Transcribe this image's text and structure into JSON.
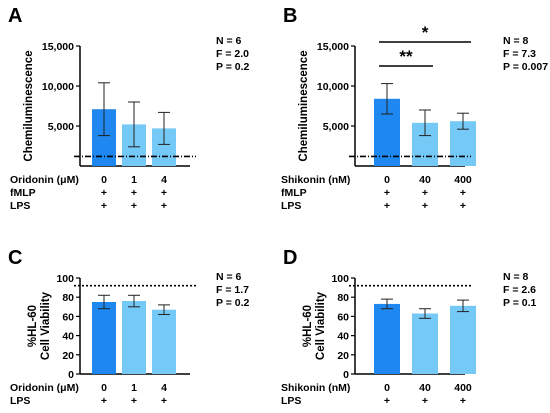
{
  "colors": {
    "dark_bar": "#1e88f0",
    "light_bar": "#74c9f7",
    "axis": "#000000"
  },
  "chart_data": [
    {
      "type": "bar",
      "panel": "A",
      "ylabel": "Chemiluminescence",
      "ylim": [
        0,
        15000
      ],
      "yticks": [
        "15,000",
        "10,000",
        "5,000"
      ],
      "ytick_values": [
        15000,
        10000,
        5000
      ],
      "categories": [
        "0",
        "1",
        "4"
      ],
      "values": [
        7100,
        5200,
        4700
      ],
      "errors": [
        3300,
        2800,
        2000
      ],
      "bar_colors": [
        "dark",
        "light",
        "light"
      ],
      "reference_line": {
        "y": 1200,
        "style": "dash-dot"
      },
      "stats": [
        "N = 6",
        "F = 2.0",
        "P = 0.2"
      ],
      "conditions": [
        {
          "label": "Oridonin (μM)",
          "values": [
            "0",
            "1",
            "4"
          ]
        },
        {
          "label": "fMLP",
          "values": [
            "+",
            "+",
            "+"
          ]
        },
        {
          "label": "LPS",
          "values": [
            "+",
            "+",
            "+"
          ]
        }
      ],
      "significance": []
    },
    {
      "type": "bar",
      "panel": "B",
      "ylabel": "Chemiluminescence",
      "ylim": [
        0,
        15000
      ],
      "yticks": [
        "15,000",
        "10,000",
        "5,000"
      ],
      "ytick_values": [
        15000,
        10000,
        5000
      ],
      "categories": [
        "0",
        "40",
        "400"
      ],
      "values": [
        8400,
        5400,
        5600
      ],
      "errors": [
        1900,
        1600,
        1000
      ],
      "bar_colors": [
        "dark",
        "light",
        "light"
      ],
      "reference_line": {
        "y": 1200,
        "style": "dash-dot"
      },
      "stats": [
        "N = 8",
        "F = 7.3",
        "P = 0.007"
      ],
      "conditions": [
        {
          "label": "Shikonin (nM)",
          "values": [
            "0",
            "40",
            "400"
          ]
        },
        {
          "label": "fMLP",
          "values": [
            "+",
            "+",
            "+"
          ]
        },
        {
          "label": "LPS",
          "values": [
            "+",
            "+",
            "+"
          ]
        }
      ],
      "significance": [
        {
          "from": 0,
          "to": 2,
          "label": "*"
        },
        {
          "from": 0,
          "to": 1,
          "label": "**"
        }
      ]
    },
    {
      "type": "bar",
      "panel": "C",
      "ylabel": [
        "%HL-60",
        "Cell Viability"
      ],
      "ylim": [
        0,
        100
      ],
      "yticks": [
        "100",
        "80",
        "60",
        "40",
        "20",
        "0"
      ],
      "ytick_values": [
        100,
        80,
        60,
        40,
        20,
        0
      ],
      "categories": [
        "0",
        "1",
        "4"
      ],
      "values": [
        75,
        76,
        67
      ],
      "errors": [
        7,
        6,
        5
      ],
      "bar_colors": [
        "dark",
        "light",
        "light"
      ],
      "reference_line": {
        "y": 92,
        "style": "dotted"
      },
      "stats": [
        "N = 6",
        "F = 1.7",
        "P = 0.2"
      ],
      "conditions": [
        {
          "label": "Oridonin (μM)",
          "values": [
            "0",
            "1",
            "4"
          ]
        },
        {
          "label": "LPS",
          "values": [
            "+",
            "+",
            "+"
          ]
        }
      ],
      "significance": []
    },
    {
      "type": "bar",
      "panel": "D",
      "ylabel": [
        "%HL-60",
        "Cell Viability"
      ],
      "ylim": [
        0,
        100
      ],
      "yticks": [
        "100",
        "80",
        "60",
        "40",
        "20",
        "0"
      ],
      "ytick_values": [
        100,
        80,
        60,
        40,
        20,
        0
      ],
      "categories": [
        "0",
        "40",
        "400"
      ],
      "values": [
        73,
        63,
        71
      ],
      "errors": [
        5,
        5,
        6
      ],
      "bar_colors": [
        "dark",
        "light",
        "light"
      ],
      "reference_line": {
        "y": 92,
        "style": "dotted"
      },
      "stats": [
        "N = 8",
        "F = 2.6",
        "P = 0.1"
      ],
      "conditions": [
        {
          "label": "Shikonin (nM)",
          "values": [
            "0",
            "40",
            "400"
          ]
        },
        {
          "label": "LPS",
          "values": [
            "+",
            "+",
            "+"
          ]
        }
      ],
      "significance": []
    }
  ]
}
